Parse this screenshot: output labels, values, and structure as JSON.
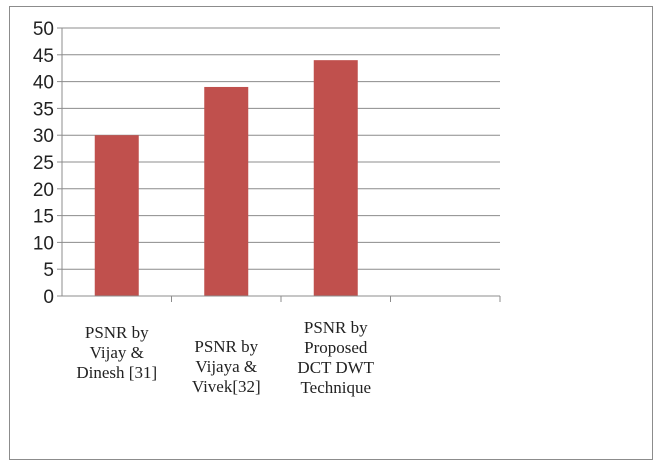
{
  "chart_data": {
    "type": "bar",
    "categories": [
      [
        "PSNR by",
        "Vijay &",
        "Dinesh [31]"
      ],
      [
        "PSNR by",
        "Vijaya &",
        "Vivek[32]"
      ],
      [
        "PSNR by",
        "Proposed",
        "DCT DWT",
        "Technique"
      ],
      [
        ""
      ]
    ],
    "values": [
      30,
      39,
      44,
      null
    ],
    "ylim": [
      0,
      50
    ],
    "yticks": [
      0,
      5,
      10,
      15,
      20,
      25,
      30,
      35,
      40,
      45,
      50
    ],
    "grid": true,
    "legend": "none",
    "bar_color": "#c0504d",
    "grid_color": "#8c8c8c"
  }
}
